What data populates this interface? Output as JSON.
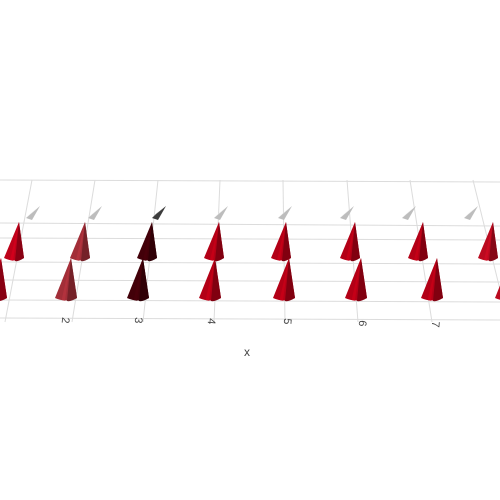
{
  "chart_data": {
    "type": "cone",
    "xlabel": "x",
    "x_tick_labels": [
      "2",
      "3",
      "4",
      "5",
      "6",
      "7"
    ],
    "x": [
      1,
      2,
      3,
      4,
      5,
      6,
      7,
      8
    ],
    "rows": [
      {
        "name": "",
        "values": [
          0.65,
          0.35,
          0.98,
          0.7,
          0.7,
          0.7,
          0.7,
          0.6
        ]
      },
      {
        "name": "",
        "values": [
          0.65,
          0.35,
          0.98,
          0.7,
          0.7,
          0.7,
          0.7,
          0.6
        ]
      },
      {
        "name": "",
        "values": [
          0.65,
          0.35,
          0.98,
          0.7,
          0.7,
          0.7,
          0.7,
          0.6
        ]
      }
    ],
    "colorscale": [
      "#ffffff",
      "#a0303a",
      "#c00018",
      "#3a0008"
    ],
    "grid": true,
    "showscale": false
  }
}
